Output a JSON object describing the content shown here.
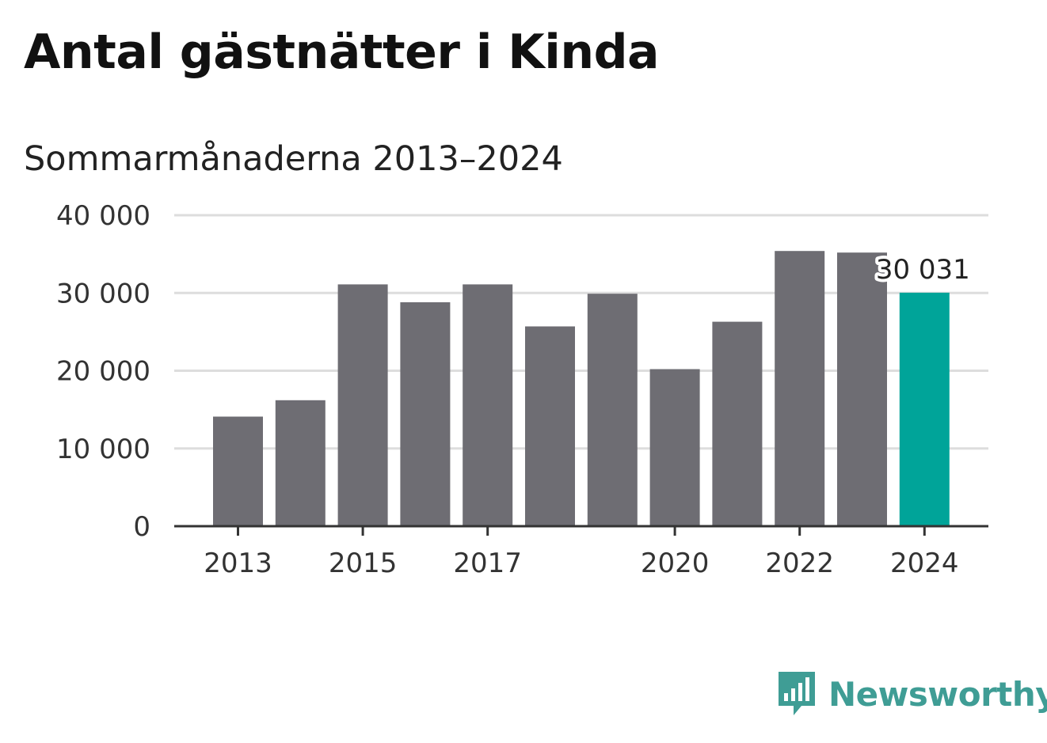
{
  "title": "Antal gästnätter i Kinda",
  "subtitle": "Sommarmånaderna 2013–2024",
  "brand": {
    "name": "Newsworthy",
    "icon": "newsworthy-logo-icon"
  },
  "colors": {
    "bar": "#6e6d73",
    "highlight": "#00a499",
    "grid": "#dddddd",
    "axis": "#333333",
    "brand": "#3f9d95"
  },
  "chart_data": {
    "type": "bar",
    "title": "Antal gästnätter i Kinda",
    "subtitle": "Sommarmånaderna 2013–2024",
    "categories": [
      "2013",
      "2014",
      "2015",
      "2016",
      "2017",
      "2018",
      "2019",
      "2020",
      "2021",
      "2022",
      "2023",
      "2024"
    ],
    "values": [
      14100,
      16200,
      31100,
      28800,
      31100,
      25700,
      29900,
      20200,
      26300,
      35400,
      35200,
      30031
    ],
    "x_tick_labels": [
      "2013",
      "2015",
      "2017",
      "2020",
      "2022",
      "2024"
    ],
    "y_ticks": [
      0,
      10000,
      20000,
      30000,
      40000
    ],
    "y_tick_labels": [
      "0",
      "10 000",
      "20 000",
      "30 000",
      "40 000"
    ],
    "ylim": [
      0,
      40000
    ],
    "grid": true,
    "highlight_index": 11,
    "data_labels": [
      {
        "index": 11,
        "text": "30 031"
      }
    ]
  }
}
